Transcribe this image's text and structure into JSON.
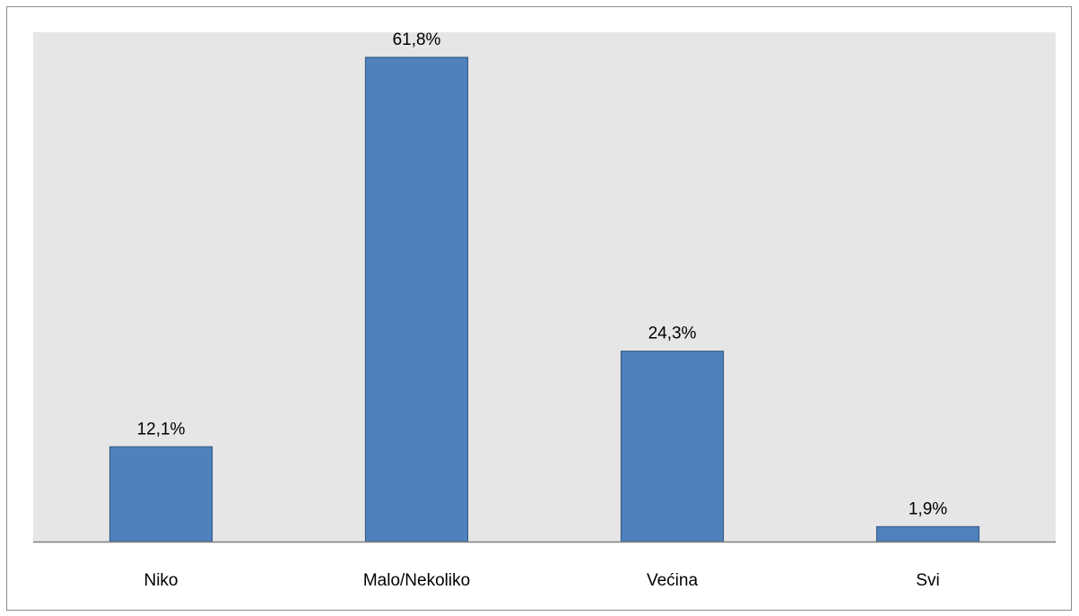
{
  "chart_data": {
    "type": "bar",
    "categories": [
      "Niko",
      "Malo/Nekoliko",
      "Većina",
      "Svi"
    ],
    "values": [
      12.1,
      61.8,
      24.3,
      1.9
    ],
    "value_labels": [
      "12,1%",
      "61,8%",
      "24,3%",
      "1,9%"
    ],
    "unit": "%",
    "title": "",
    "xlabel": "",
    "ylabel": "",
    "ylim": [
      0,
      65
    ],
    "grid": false,
    "legend": "none",
    "colors": {
      "bar": "#4f81bd",
      "bar_border": "#385d8a",
      "plot_background": "#e6e6e6",
      "axis": "#808080"
    }
  }
}
